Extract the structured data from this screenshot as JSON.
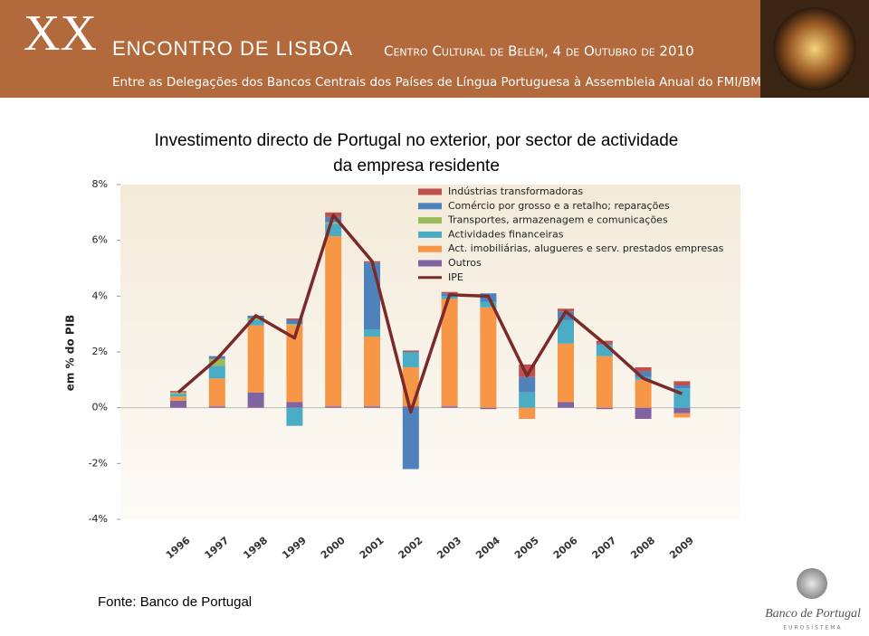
{
  "header": {
    "number": "XX",
    "event": "ENCONTRO DE LISBOA",
    "venue": "Centro Cultural de Belém, 4 de Outubro de 2010",
    "subtitle": "Entre as Delegações dos Bancos Centrais dos Países de Língua Portuguesa à Assembleia Anual do FMI/BM"
  },
  "chart_data": {
    "type": "bar",
    "stacked": true,
    "title": [
      "Investimento directo de Portugal no exterior,  por sector de actividade",
      "da empresa residente"
    ],
    "y_label": "em % do PIB",
    "categories": [
      "1996",
      "1997",
      "1998",
      "1999",
      "2000",
      "2001",
      "2002",
      "2003",
      "2004",
      "2005",
      "2006",
      "2007",
      "2008",
      "2009"
    ],
    "ylim": [
      -4,
      8
    ],
    "yticks": [
      {
        "value": -4,
        "label": "-4%"
      },
      {
        "value": -2,
        "label": "-2%"
      },
      {
        "value": 0,
        "label": "0%"
      },
      {
        "value": 2,
        "label": "2%"
      },
      {
        "value": 4,
        "label": "4%"
      },
      {
        "value": 6,
        "label": "6%"
      },
      {
        "value": 8,
        "label": "8%"
      }
    ],
    "series": [
      {
        "name": "Indústrias transformadoras",
        "color": "#c0504d",
        "values": [
          0.05,
          0,
          0,
          0.05,
          0.15,
          0.05,
          0.05,
          0.05,
          0,
          0.45,
          0.1,
          0.1,
          0.15,
          0.15
        ]
      },
      {
        "name": "Comércio por grosso e a retalho; reparações",
        "color": "#4f81bd",
        "values": [
          0,
          0.1,
          0.1,
          0.15,
          0.2,
          2.4,
          -2.2,
          0.1,
          0.3,
          0.55,
          0.3,
          0.05,
          0.2,
          0.1
        ]
      },
      {
        "name": "Transportes, armazenagem e comunicações",
        "color": "#9bbb59",
        "values": [
          0.05,
          0.25,
          0.05,
          0.05,
          0.05,
          0,
          0,
          0,
          0,
          0,
          0,
          0,
          0,
          0
        ]
      },
      {
        "name": "Actividades financeiras",
        "color": "#4bacc6",
        "values": [
          0.1,
          0.45,
          0.2,
          -0.65,
          0.45,
          0.25,
          0.55,
          0.1,
          0.2,
          0.55,
          0.85,
          0.4,
          0.1,
          0.7
        ]
      },
      {
        "name": "Act. imobiliárias,  alugueres e serv. prestados empresas",
        "color": "#f79646",
        "values": [
          0.15,
          1.0,
          2.4,
          2.75,
          6.1,
          2.5,
          1.4,
          3.85,
          3.6,
          -0.4,
          2.1,
          1.85,
          1.0,
          -0.15
        ]
      },
      {
        "name": "Outros",
        "color": "#8064a2",
        "values": [
          0.25,
          0.05,
          0.55,
          0.2,
          0.05,
          0.05,
          0.05,
          0.05,
          -0.05,
          0,
          0.2,
          -0.05,
          -0.4,
          -0.2
        ]
      },
      {
        "name": "IPE",
        "color": "#7b2a2a",
        "type": "line",
        "values": [
          0.55,
          1.75,
          3.3,
          2.5,
          6.9,
          5.25,
          -0.15,
          4.05,
          4.0,
          1.15,
          3.45,
          2.3,
          1.05,
          0.5
        ]
      }
    ],
    "source": "Fonte: Banco de Portugal"
  },
  "logo": {
    "name": "Banco de Portugal",
    "tag": "EUROSISTEMA"
  }
}
